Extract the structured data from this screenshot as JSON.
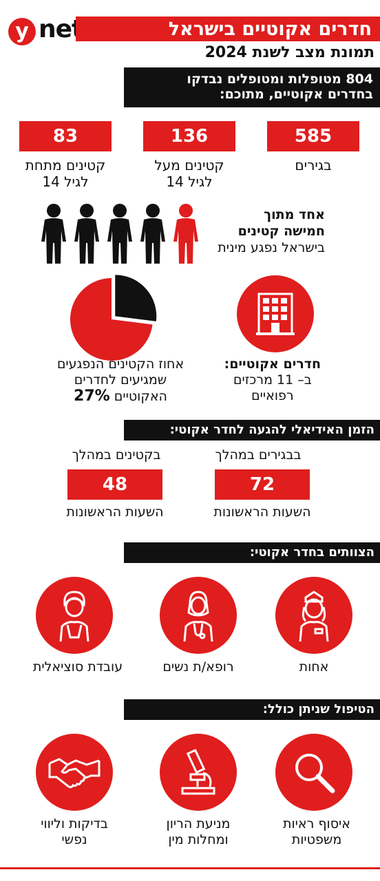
{
  "header": {
    "logo_y": "y",
    "logo_net": "net",
    "title": "חדרים אקוטיים בישראל",
    "subtitle": "תמונת מצב לשנת 2024"
  },
  "intro": {
    "line1": "804 מטופלות ומטופלים נבדקו",
    "line2": "בחדרים אקוטיים, מתוכם:"
  },
  "stats": [
    {
      "value": "585",
      "label_line1": "בגירים",
      "label_line2": ""
    },
    {
      "value": "136",
      "label_line1": "קטינים מעל",
      "label_line2": "לגיל 14"
    },
    {
      "value": "83",
      "label_line1": "קטינים מתחת",
      "label_line2": "לגיל 14"
    }
  ],
  "one_of_five": {
    "line1": "אחד מתוך",
    "line2": "חמישה קטינים",
    "line3": "בישראל נפגע מינית",
    "highlight_count": 1,
    "total_count": 5
  },
  "rooms": {
    "line1": "חדרים אקוטיים:",
    "line2": "ב– 11 מרכזים",
    "line3": "רפואיים",
    "icon": "building-icon"
  },
  "pie": {
    "line1": "אחוז הקטינים הנפגעים",
    "line2": "שמגיעים לחדרים",
    "line3": "האקוטיים",
    "percent_label": "27%",
    "percent": 27
  },
  "time": {
    "heading": "הזמן האידיאלי להגעה לחדר אקוטי:",
    "adults_top": "בבגירים במהלך",
    "adults_value": "72",
    "adults_bottom": "השעות הראשונות",
    "minors_top": "בקטינים במהלך",
    "minors_value": "48",
    "minors_bottom": "השעות הראשונות"
  },
  "teams": {
    "heading": "הצוותים בחדר אקוטי:",
    "items": [
      {
        "label": "אחות",
        "icon": "nurse-icon"
      },
      {
        "label": "רופא/ת נשים",
        "icon": "doctor-icon"
      },
      {
        "label": "עובדת סוציאלית",
        "icon": "social-worker-icon"
      }
    ]
  },
  "treatment": {
    "heading": "הטיפול שניתן כולל:",
    "items": [
      {
        "line1": "איסוף ראיות",
        "line2": "משפטיות",
        "icon": "magnifier-icon"
      },
      {
        "line1": "מניעת הריון",
        "line2": "ומחלות מין",
        "icon": "microscope-icon"
      },
      {
        "line1": "בדיקות וליווי",
        "line2": "נפשי",
        "icon": "handshake-icon"
      }
    ]
  },
  "colors": {
    "accent": "#e01e1e",
    "dark": "#111111"
  }
}
